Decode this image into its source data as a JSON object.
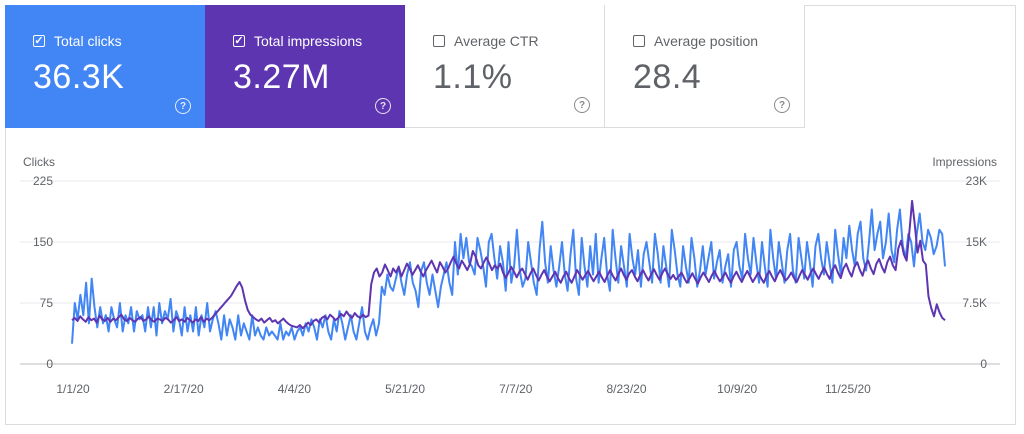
{
  "cards": [
    {
      "label": "Total clicks",
      "value": "36.3K",
      "checked": true,
      "color": "#4285f4"
    },
    {
      "label": "Total impressions",
      "value": "3.27M",
      "checked": true,
      "color": "#5e35b1"
    },
    {
      "label": "Average CTR",
      "value": "1.1%",
      "checked": false
    },
    {
      "label": "Average position",
      "value": "28.4",
      "checked": false
    }
  ],
  "help_glyph": "?",
  "check_glyph": "✓",
  "chart_data": {
    "type": "line",
    "ylabel_left": "Clicks",
    "ylabel_right": "Impressions",
    "y_left_ticks": [
      "225",
      "150",
      "75",
      "0"
    ],
    "y_left_range": [
      0,
      225
    ],
    "y_right_ticks": [
      "23K",
      "15K",
      "7.5K",
      "0"
    ],
    "y_right_range": [
      0,
      23000
    ],
    "x_ticks": [
      "1/1/20",
      "2/17/20",
      "4/4/20",
      "5/21/20",
      "7/7/20",
      "8/23/20",
      "10/9/20",
      "11/25/20"
    ],
    "grid": true,
    "series": [
      {
        "name": "Clicks",
        "axis": "left",
        "color": "#4285f4",
        "values": [
          25,
          75,
          55,
          85,
          60,
          100,
          50,
          105,
          70,
          45,
          70,
          50,
          60,
          40,
          70,
          55,
          45,
          75,
          40,
          60,
          50,
          70,
          40,
          65,
          55,
          60,
          40,
          70,
          45,
          70,
          35,
          75,
          50,
          65,
          55,
          80,
          40,
          65,
          55,
          35,
          70,
          40,
          60,
          40,
          70,
          35,
          60,
          45,
          75,
          40,
          55,
          65,
          50,
          30,
          60,
          35,
          55,
          45,
          30,
          60,
          35,
          50,
          40,
          30,
          60,
          35,
          45,
          35,
          30,
          45,
          35,
          40,
          35,
          30,
          50,
          30,
          40,
          35,
          45,
          30,
          40,
          45,
          35,
          50,
          40,
          55,
          45,
          30,
          55,
          45,
          60,
          40,
          30,
          55,
          40,
          65,
          50,
          30,
          45,
          60,
          40,
          30,
          50,
          70,
          40,
          30,
          45,
          55,
          35,
          50,
          95,
          85,
          110,
          95,
          90,
          105,
          120,
          100,
          85,
          110,
          125,
          100,
          90,
          70,
          115,
          125,
          100,
          85,
          110,
          90,
          70,
          95,
          110,
          125,
          100,
          85,
          150,
          110,
          160,
          130,
          155,
          125,
          120,
          110,
          155,
          140,
          120,
          95,
          150,
          160,
          130,
          105,
          145,
          125,
          90,
          150,
          100,
          120,
          165,
          115,
          95,
          105,
          150,
          125,
          100,
          85,
          140,
          175,
          125,
          100,
          145,
          115,
          95,
          120,
          150,
          110,
          90,
          135,
          165,
          105,
          85,
          155,
          120,
          95,
          145,
          110,
          160,
          100,
          130,
          155,
          110,
          90,
          165,
          130,
          100,
          145,
          120,
          95,
          160,
          130,
          110,
          140,
          95,
          135,
          150,
          125,
          100,
          160,
          135,
          100,
          145,
          120,
          95,
          165,
          140,
          110,
          95,
          145,
          120,
          100,
          155,
          130,
          95,
          115,
          145,
          110,
          130,
          150,
          105,
          125,
          140,
          100,
          120,
          135,
          95,
          140,
          150,
          120,
          105,
          160,
          130,
          110,
          155,
          125,
          100,
          150,
          120,
          95,
          165,
          130,
          105,
          150,
          125,
          100,
          140,
          160,
          115,
          100,
          155,
          130,
          105,
          150,
          125,
          95,
          145,
          160,
          130,
          110,
          150,
          125,
          100,
          165,
          135,
          110,
          155,
          130,
          170,
          140,
          120,
          160,
          175,
          130,
          115,
          150,
          190,
          140,
          160,
          175,
          130,
          150,
          185,
          140,
          125,
          165,
          190,
          145,
          130,
          160,
          150,
          120,
          160,
          185,
          150,
          140,
          165,
          155,
          135,
          145,
          165,
          160,
          120
        ]
      },
      {
        "name": "Impressions",
        "axis": "right",
        "color": "#5e35b1",
        "values": [
          5500,
          5800,
          5400,
          6000,
          5600,
          5300,
          5900,
          5500,
          5700,
          5200,
          6100,
          5600,
          5400,
          5800,
          5300,
          5700,
          5500,
          5900,
          6200,
          5600,
          5400,
          5800,
          5500,
          5300,
          5700,
          5900,
          5400,
          5600,
          6000,
          5500,
          5300,
          5700,
          5600,
          5400,
          5800,
          5600,
          5200,
          5500,
          5900,
          5400,
          5600,
          5300,
          5800,
          5500,
          5200,
          5600,
          5400,
          5900,
          5300,
          5700,
          5500,
          5800,
          6200,
          6600,
          7000,
          7400,
          7800,
          8200,
          8600,
          9200,
          9800,
          10300,
          9600,
          8000,
          6800,
          6200,
          5900,
          5600,
          5400,
          5700,
          5200,
          5500,
          5800,
          5300,
          5500,
          5100,
          5400,
          5700,
          5300,
          5000,
          4800,
          4700,
          4600,
          4900,
          4500,
          4800,
          5200,
          4900,
          5400,
          5600,
          5200,
          5800,
          6000,
          5600,
          6200,
          5900,
          5500,
          5800,
          6300,
          6000,
          6600,
          6100,
          5800,
          6400,
          6000,
          5800,
          6200,
          5900,
          6100,
          10000,
          11500,
          12000,
          11000,
          11500,
          12500,
          11800,
          11000,
          12000,
          11500,
          12200,
          11000,
          11800,
          12600,
          12000,
          11200,
          11800,
          12400,
          11600,
          11000,
          11800,
          12400,
          13000,
          12200,
          11500,
          12800,
          12200,
          11500,
          12000,
          12800,
          13500,
          12600,
          12000,
          13000,
          12400,
          11800,
          12600,
          14200,
          13500,
          12400,
          12000,
          12800,
          13400,
          12600,
          11800,
          12400,
          12000,
          12600,
          11500,
          10800,
          11500,
          12200,
          11600,
          10900,
          11600,
          12000,
          11300,
          10600,
          11400,
          12000,
          11200,
          10500,
          11200,
          11800,
          11000,
          10400,
          11000,
          11600,
          10800,
          10200,
          11000,
          11600,
          10800,
          10200,
          11000,
          11800,
          11200,
          10600,
          11200,
          11700,
          11000,
          10400,
          11000,
          11600,
          10900,
          10300,
          11100,
          11800,
          11100,
          10500,
          11300,
          12000,
          11200,
          10600,
          11400,
          11800,
          11000,
          10400,
          11200,
          11800,
          11100,
          10500,
          11300,
          11900,
          11200,
          10600,
          11400,
          12000,
          11300,
          10700,
          11200,
          10600,
          11000,
          11500,
          10800,
          10200,
          10800,
          11400,
          10700,
          10100,
          10900,
          11500,
          10900,
          10300,
          11100,
          11700,
          11000,
          10400,
          10900,
          11500,
          10800,
          10200,
          11000,
          11600,
          10900,
          10300,
          11100,
          11700,
          11000,
          10300,
          10900,
          11500,
          10800,
          10200,
          11100,
          11700,
          11000,
          10400,
          11200,
          11800,
          11100,
          10500,
          10900,
          11500,
          10800,
          10300,
          11100,
          11800,
          11200,
          10600,
          11400,
          12000,
          11300,
          10700,
          11500,
          12100,
          11300,
          10700,
          11800,
          12400,
          11500,
          10800,
          12000,
          12600,
          11700,
          11000,
          12200,
          12800,
          11800,
          11100,
          12400,
          13000,
          12000,
          11300,
          12600,
          13200,
          12200,
          11500,
          12800,
          13500,
          12400,
          11800,
          14500,
          15500,
          13800,
          13000,
          16500,
          20500,
          17500,
          14000,
          15500,
          13000,
          12500,
          8500,
          7000,
          6000,
          7500,
          6500,
          5800,
          5500
        ]
      }
    ]
  }
}
